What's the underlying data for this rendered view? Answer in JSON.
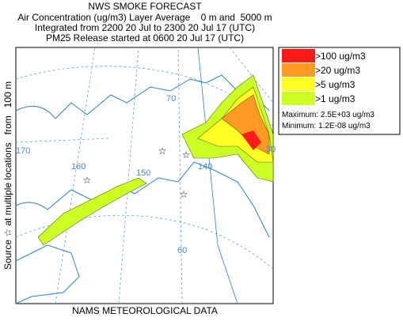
{
  "header": {
    "title": "NWS SMOKE FORECAST",
    "lines": [
      "Air Concentration (ug/m3) Layer Average    0 m and  5000 m",
      "Integrated from 2200 20 Jul to 2300 20 Jul 17 (UTC)",
      "PM25 Release started at 0600 20 Jul 17 (UTC)"
    ]
  },
  "side_label": "Source ☆ at multiple locations   from   100 m",
  "footer": "NAMS METEOROLOGICAL DATA",
  "legend": {
    "items": [
      {
        "label": ">100 ug/m3",
        "color": "#ff1a1a"
      },
      {
        "label": ">20 ug/m3",
        "color": "#ff9922"
      },
      {
        "label": ">5 ug/m3",
        "color": "#ffff22"
      },
      {
        "label": ">1 ug/m3",
        "color": "#ccff22"
      }
    ],
    "maximum": "Maximum: 2.5E+03 ug/m3",
    "minimum": "Minimum: 1.2E-08 ug/m3"
  },
  "map_labels": [
    "70",
    "170",
    "160",
    "150",
    "140",
    "30",
    "60"
  ]
}
